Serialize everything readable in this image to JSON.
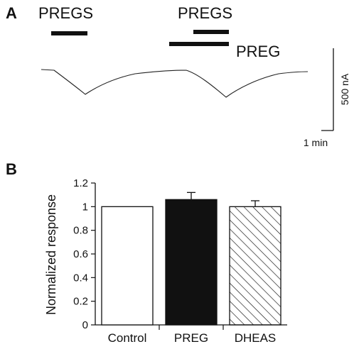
{
  "panel_a": {
    "label": "A",
    "application_labels": [
      "PREGS",
      "PREGS",
      "PREG"
    ],
    "scale_bar": {
      "vertical_label": "500 nA",
      "horizontal_label": "1 min"
    }
  },
  "chart_data": {
    "type": "bar",
    "panel_label": "B",
    "categories": [
      "Control",
      "PREG",
      "DHEAS"
    ],
    "values": [
      1.0,
      1.06,
      1.0
    ],
    "errors": [
      0,
      0.06,
      0.05
    ],
    "fills": [
      "white",
      "black",
      "hatched"
    ],
    "ylabel": "Normalized  response",
    "xlabel": "",
    "ylim": [
      0,
      1.2
    ],
    "yticks": [
      "0",
      "0.2",
      "0.4",
      "0.6",
      "0.8",
      "1",
      "1.2"
    ],
    "grid": false
  },
  "colors": {
    "ink": "#111111",
    "background": "#ffffff"
  }
}
